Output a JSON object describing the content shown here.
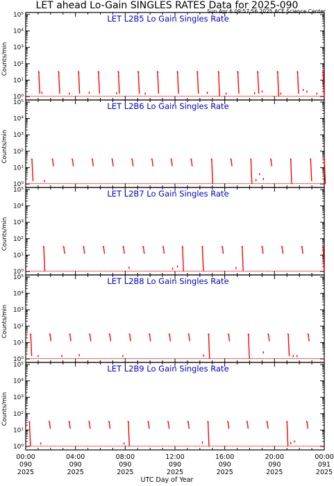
{
  "header": {
    "title": "LET ahead Lo-Gain SINGLES RATES Data for 2025-090",
    "timestamp": "Sun Apr  6 09:57:56 2025 ACE Science Center"
  },
  "colors": {
    "trace": "#ff0000",
    "panel_title": "#0000cc",
    "axis": "#000000"
  },
  "x_axis": {
    "label": "UTC Day of Year",
    "ticks": [
      {
        "time": "00:00",
        "doy": "090",
        "year": "2025"
      },
      {
        "time": "04:00",
        "doy": "090",
        "year": "2025"
      },
      {
        "time": "08:00",
        "doy": "090",
        "year": "2025"
      },
      {
        "time": "12:00",
        "doy": "090",
        "year": "2025"
      },
      {
        "time": "16:00",
        "doy": "090",
        "year": "2025"
      },
      {
        "time": "20:00",
        "doy": "090",
        "year": "2025"
      },
      {
        "time": "00:00",
        "doy": "091",
        "year": "2025"
      }
    ]
  },
  "chart_data": [
    {
      "type": "scatter",
      "title": "LET L2B5 Lo Gain Singles Rate",
      "ylabel": "Counts/min",
      "y_scale": "log",
      "ylim": [
        1,
        100000
      ],
      "xlim_hours": [
        0,
        24
      ],
      "y_ticks": [
        "10⁰",
        "10¹",
        "10²",
        "10³",
        "10⁴",
        "10⁵"
      ],
      "spikes": [
        {
          "hour": 1.05,
          "top": 35,
          "bottom": 1.5
        },
        {
          "hour": 2.65,
          "top": 35,
          "bottom": 1.5
        },
        {
          "hour": 4.25,
          "top": 35,
          "bottom": 1.5
        },
        {
          "hour": 5.85,
          "top": 35,
          "bottom": 1.5
        },
        {
          "hour": 7.45,
          "top": 35,
          "bottom": 1.5
        },
        {
          "hour": 9.05,
          "top": 35,
          "bottom": 1.5
        },
        {
          "hour": 10.6,
          "top": 35,
          "bottom": 1.5
        },
        {
          "hour": 12.2,
          "top": 35,
          "bottom": 1.5
        },
        {
          "hour": 13.8,
          "top": 35,
          "bottom": 1.5
        },
        {
          "hour": 15.5,
          "top": 35,
          "bottom": 1
        },
        {
          "hour": 17.05,
          "top": 35,
          "bottom": 1.5
        },
        {
          "hour": 18.65,
          "top": 35,
          "bottom": 1.5
        },
        {
          "hour": 20.25,
          "top": 35,
          "bottom": 1
        },
        {
          "hour": 21.85,
          "top": 35,
          "bottom": 1.5
        },
        {
          "hour": 23.9,
          "top": 35,
          "bottom": 1
        }
      ],
      "isolated": [
        {
          "hour": 1.3,
          "value": 1.7
        },
        {
          "hour": 3.5,
          "value": 1.5
        },
        {
          "hour": 5.1,
          "value": 1.7
        },
        {
          "hour": 7.3,
          "value": 1.6
        },
        {
          "hour": 9.6,
          "value": 1.5
        },
        {
          "hour": 14.6,
          "value": 1.7
        },
        {
          "hour": 16.1,
          "value": 1.5
        },
        {
          "hour": 18.4,
          "value": 1.6
        },
        {
          "hour": 19.0,
          "value": 2.0
        },
        {
          "hour": 20.5,
          "value": 1.5
        },
        {
          "hour": 22.3,
          "value": 2.5
        },
        {
          "hour": 22.6,
          "value": 2.0
        },
        {
          "hour": 23.4,
          "value": 1.5
        }
      ]
    },
    {
      "type": "scatter",
      "title": "LET L2B6 Lo Gain Singles Rate",
      "ylabel": "Counts/min",
      "y_scale": "log",
      "ylim": [
        1,
        100000
      ],
      "xlim_hours": [
        0,
        24
      ],
      "y_ticks": [
        "10⁰",
        "10¹",
        "10²",
        "10³",
        "10⁴",
        "10⁵"
      ],
      "spikes": [
        {
          "hour": 0.5,
          "top": 35,
          "bottom": 1.5
        },
        {
          "hour": 2.15,
          "top": 35,
          "bottom": 12
        },
        {
          "hour": 3.75,
          "top": 35,
          "bottom": 12
        },
        {
          "hour": 5.35,
          "top": 35,
          "bottom": 12
        },
        {
          "hour": 6.95,
          "top": 35,
          "bottom": 12
        },
        {
          "hour": 8.55,
          "top": 35,
          "bottom": 12
        },
        {
          "hour": 10.15,
          "top": 35,
          "bottom": 12
        },
        {
          "hour": 11.7,
          "top": 35,
          "bottom": 12
        },
        {
          "hour": 13.3,
          "top": 35,
          "bottom": 12
        },
        {
          "hour": 14.95,
          "top": 35,
          "bottom": 1
        },
        {
          "hour": 16.5,
          "top": 35,
          "bottom": 12
        },
        {
          "hour": 18.1,
          "top": 35,
          "bottom": 1
        },
        {
          "hour": 19.7,
          "top": 35,
          "bottom": 12
        },
        {
          "hour": 21.3,
          "top": 35,
          "bottom": 1
        },
        {
          "hour": 22.9,
          "top": 35,
          "bottom": 1.5
        },
        {
          "hour": 24.0,
          "top": 35,
          "bottom": 1
        }
      ],
      "isolated": [
        {
          "hour": 1.5,
          "value": 1.5
        },
        {
          "hour": 18.5,
          "value": 1.7
        },
        {
          "hour": 18.8,
          "value": 4.0
        },
        {
          "hour": 19.1,
          "value": 2.0
        }
      ]
    },
    {
      "type": "scatter",
      "title": "LET L2B7 Lo Gain Singles Rate",
      "ylabel": "Counts/min",
      "y_scale": "log",
      "ylim": [
        1,
        100000
      ],
      "xlim_hours": [
        0,
        24
      ],
      "y_ticks": [
        "10⁰",
        "10¹",
        "10²",
        "10³",
        "10⁴",
        "10⁵"
      ],
      "spikes": [
        {
          "hour": 1.45,
          "top": 35,
          "bottom": 1
        },
        {
          "hour": 3.05,
          "top": 35,
          "bottom": 12
        },
        {
          "hour": 4.65,
          "top": 35,
          "bottom": 12
        },
        {
          "hour": 6.25,
          "top": 35,
          "bottom": 12
        },
        {
          "hour": 7.85,
          "top": 35,
          "bottom": 12
        },
        {
          "hour": 9.45,
          "top": 35,
          "bottom": 12
        },
        {
          "hour": 11.05,
          "top": 35,
          "bottom": 12
        },
        {
          "hour": 12.6,
          "top": 35,
          "bottom": 1
        },
        {
          "hour": 14.2,
          "top": 35,
          "bottom": 1
        },
        {
          "hour": 15.8,
          "top": 35,
          "bottom": 12
        },
        {
          "hour": 17.4,
          "top": 35,
          "bottom": 1
        },
        {
          "hour": 19.0,
          "top": 35,
          "bottom": 12
        },
        {
          "hour": 20.6,
          "top": 35,
          "bottom": 12
        },
        {
          "hour": 22.2,
          "top": 35,
          "bottom": 12
        },
        {
          "hour": 23.9,
          "top": 35,
          "bottom": 1
        }
      ],
      "isolated": [
        {
          "hour": 8.3,
          "value": 1.7
        },
        {
          "hour": 11.8,
          "value": 1.5
        },
        {
          "hour": 12.2,
          "value": 2.0
        },
        {
          "hour": 16.9,
          "value": 1.6
        }
      ]
    },
    {
      "type": "scatter",
      "title": "LET L2B8 Lo Gain Singles Rate",
      "ylabel": "Counts/min",
      "y_scale": "log",
      "ylim": [
        1,
        100000
      ],
      "xlim_hours": [
        0,
        24
      ],
      "y_ticks": [
        "10⁰",
        "10¹",
        "10²",
        "10³",
        "10⁴",
        "10⁵"
      ],
      "spikes": [
        {
          "hour": 0.4,
          "top": 35,
          "bottom": 1.5
        },
        {
          "hour": 1.95,
          "top": 35,
          "bottom": 12
        },
        {
          "hour": 3.55,
          "top": 35,
          "bottom": 12
        },
        {
          "hour": 5.15,
          "top": 35,
          "bottom": 12
        },
        {
          "hour": 6.75,
          "top": 35,
          "bottom": 12
        },
        {
          "hour": 8.35,
          "top": 35,
          "bottom": 12
        },
        {
          "hour": 9.95,
          "top": 35,
          "bottom": 12
        },
        {
          "hour": 11.55,
          "top": 35,
          "bottom": 12
        },
        {
          "hour": 13.1,
          "top": 35,
          "bottom": 12
        },
        {
          "hour": 14.7,
          "top": 35,
          "bottom": 1
        },
        {
          "hour": 16.3,
          "top": 35,
          "bottom": 12
        },
        {
          "hour": 17.9,
          "top": 35,
          "bottom": 1
        },
        {
          "hour": 19.5,
          "top": 35,
          "bottom": 12
        },
        {
          "hour": 21.1,
          "top": 35,
          "bottom": 1.5
        },
        {
          "hour": 22.7,
          "top": 35,
          "bottom": 12
        }
      ],
      "isolated": [
        {
          "hour": 1.0,
          "value": 1.5
        },
        {
          "hour": 2.9,
          "value": 1.5
        },
        {
          "hour": 4.3,
          "value": 1.7
        },
        {
          "hour": 7.8,
          "value": 1.5
        },
        {
          "hour": 14.3,
          "value": 1.6
        },
        {
          "hour": 19.1,
          "value": 2.5
        },
        {
          "hour": 21.5,
          "value": 1.5
        },
        {
          "hour": 21.8,
          "value": 1.5
        }
      ]
    },
    {
      "type": "scatter",
      "title": "LET L2B9 Lo Gain Singles Rate",
      "ylabel": "Counts/min",
      "y_scale": "log",
      "ylim": [
        1,
        100000
      ],
      "xlim_hours": [
        0,
        24
      ],
      "y_ticks": [
        "10⁰",
        "10¹",
        "10²",
        "10³",
        "10⁴",
        "10⁵"
      ],
      "spikes": [
        {
          "hour": 0.3,
          "top": 35,
          "bottom": 1
        },
        {
          "hour": 1.9,
          "top": 35,
          "bottom": 12
        },
        {
          "hour": 3.5,
          "top": 35,
          "bottom": 12
        },
        {
          "hour": 5.1,
          "top": 35,
          "bottom": 12
        },
        {
          "hour": 6.7,
          "top": 35,
          "bottom": 12
        },
        {
          "hour": 8.25,
          "top": 35,
          "bottom": 1
        },
        {
          "hour": 9.85,
          "top": 35,
          "bottom": 12
        },
        {
          "hour": 11.45,
          "top": 35,
          "bottom": 12
        },
        {
          "hour": 13.05,
          "top": 35,
          "bottom": 12
        },
        {
          "hour": 14.65,
          "top": 35,
          "bottom": 1
        },
        {
          "hour": 16.25,
          "top": 35,
          "bottom": 12
        },
        {
          "hour": 17.8,
          "top": 35,
          "bottom": 12
        },
        {
          "hour": 19.4,
          "top": 35,
          "bottom": 12
        },
        {
          "hour": 21.0,
          "top": 35,
          "bottom": 1
        },
        {
          "hour": 22.6,
          "top": 35,
          "bottom": 12
        }
      ],
      "isolated": [
        {
          "hour": 1.2,
          "value": 1.5
        },
        {
          "hour": 7.9,
          "value": 1.5
        },
        {
          "hour": 14.2,
          "value": 1.7
        },
        {
          "hour": 21.3,
          "value": 1.6
        },
        {
          "hour": 21.6,
          "value": 2.0
        }
      ]
    }
  ]
}
